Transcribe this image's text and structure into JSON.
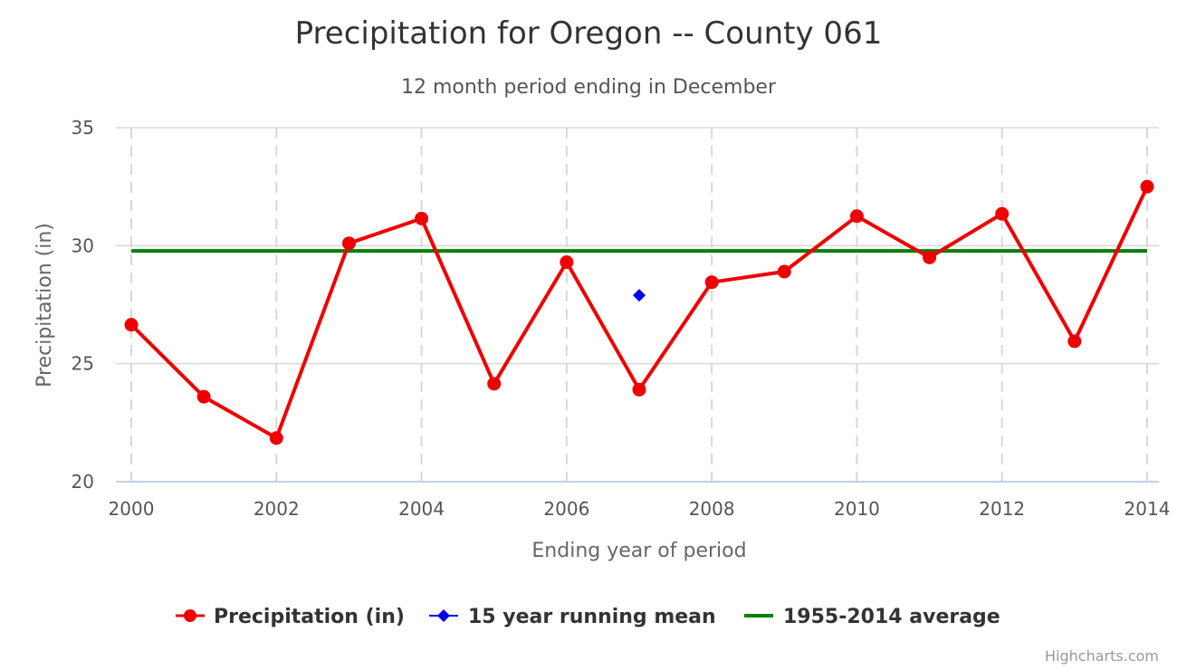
{
  "chart_data": {
    "type": "line",
    "title": "Precipitation for Oregon -- County 061",
    "subtitle": "12 month period ending in December",
    "xlabel": "Ending year of period",
    "ylabel": "Precipitation (in)",
    "xlim": [
      2000,
      2014
    ],
    "ylim": [
      20,
      35
    ],
    "x_ticks": [
      "2000",
      "2002",
      "2004",
      "2006",
      "2008",
      "2010",
      "2012",
      "2014"
    ],
    "y_ticks": [
      "20",
      "25",
      "30",
      "35"
    ],
    "grid": {
      "x": "dashed",
      "y": "solid"
    },
    "legend_position": "bottom-center",
    "series": [
      {
        "name": "Precipitation (in)",
        "type": "line",
        "marker": "circle",
        "color": "#ee0000",
        "x": [
          2000,
          2001,
          2002,
          2003,
          2004,
          2005,
          2006,
          2007,
          2008,
          2009,
          2010,
          2011,
          2012,
          2013,
          2014
        ],
        "values": [
          26.65,
          23.6,
          21.85,
          30.1,
          31.15,
          24.15,
          29.3,
          23.9,
          28.45,
          28.9,
          31.25,
          29.5,
          31.35,
          25.95,
          32.5
        ]
      },
      {
        "name": "15 year running mean",
        "type": "scatter",
        "marker": "diamond",
        "color": "#0000ee",
        "x": [
          2007
        ],
        "values": [
          27.9
        ]
      },
      {
        "name": "1955-2014 average",
        "type": "line",
        "marker": "none",
        "color": "#008000",
        "x": [
          2000,
          2014
        ],
        "values": [
          29.78,
          29.78
        ]
      }
    ],
    "credits": "Highcharts.com"
  }
}
